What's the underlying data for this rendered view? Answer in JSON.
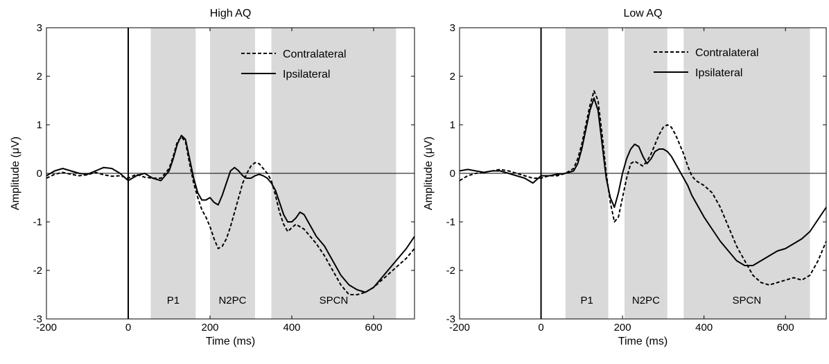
{
  "chart_data": [
    {
      "type": "line",
      "title": "High AQ",
      "xlabel": "Time (ms)",
      "ylabel": "Amplitude (μV)",
      "xlim": [
        -200,
        700
      ],
      "ylim": [
        -3,
        3
      ],
      "xticks": [
        -200,
        0,
        200,
        400,
        600
      ],
      "yticks": [
        -3,
        -2,
        -1,
        0,
        1,
        2,
        3
      ],
      "legend_position": "top-right",
      "shaded_windows": [
        {
          "label": "P1",
          "start": 55,
          "end": 165
        },
        {
          "label": "N2PC",
          "start": 200,
          "end": 310
        },
        {
          "label": "SPCN",
          "start": 350,
          "end": 655
        }
      ],
      "series": [
        {
          "name": "Contralateral",
          "style": "dashed",
          "x": [
            -200,
            -180,
            -160,
            -140,
            -120,
            -100,
            -80,
            -60,
            -40,
            -20,
            0,
            20,
            40,
            60,
            80,
            100,
            110,
            120,
            130,
            140,
            150,
            160,
            170,
            180,
            190,
            200,
            210,
            220,
            230,
            240,
            250,
            260,
            270,
            280,
            290,
            300,
            310,
            320,
            330,
            340,
            350,
            360,
            370,
            380,
            390,
            400,
            410,
            420,
            430,
            440,
            460,
            480,
            500,
            520,
            540,
            560,
            580,
            600,
            620,
            640,
            660,
            680,
            700
          ],
          "values": [
            -0.1,
            -0.02,
            0.02,
            -0.02,
            -0.05,
            -0.03,
            0.02,
            -0.03,
            -0.06,
            -0.05,
            -0.1,
            -0.02,
            -0.08,
            -0.1,
            -0.1,
            0.1,
            0.35,
            0.65,
            0.75,
            0.65,
            0.2,
            -0.2,
            -0.5,
            -0.75,
            -0.9,
            -1.1,
            -1.35,
            -1.55,
            -1.5,
            -1.35,
            -1.1,
            -0.8,
            -0.5,
            -0.2,
            0.0,
            0.15,
            0.22,
            0.2,
            0.1,
            0.0,
            -0.15,
            -0.45,
            -0.8,
            -1.05,
            -1.2,
            -1.12,
            -1.05,
            -1.1,
            -1.15,
            -1.25,
            -1.45,
            -1.7,
            -2.0,
            -2.3,
            -2.5,
            -2.5,
            -2.45,
            -2.35,
            -2.2,
            -2.05,
            -1.9,
            -1.75,
            -1.55
          ]
        },
        {
          "name": "Ipsilateral",
          "style": "solid",
          "x": [
            -200,
            -180,
            -160,
            -140,
            -120,
            -100,
            -80,
            -60,
            -40,
            -20,
            0,
            20,
            40,
            60,
            80,
            100,
            110,
            120,
            130,
            140,
            150,
            160,
            170,
            180,
            190,
            200,
            210,
            220,
            230,
            240,
            250,
            260,
            270,
            280,
            290,
            300,
            310,
            320,
            330,
            340,
            350,
            360,
            370,
            380,
            390,
            400,
            410,
            420,
            430,
            440,
            460,
            480,
            500,
            520,
            540,
            560,
            580,
            600,
            620,
            640,
            660,
            680,
            700
          ],
          "values": [
            -0.05,
            0.05,
            0.1,
            0.05,
            0.0,
            -0.02,
            0.05,
            0.12,
            0.1,
            0.0,
            -0.15,
            -0.05,
            0.0,
            -0.1,
            -0.15,
            0.05,
            0.3,
            0.6,
            0.78,
            0.7,
            0.3,
            -0.1,
            -0.4,
            -0.55,
            -0.55,
            -0.5,
            -0.6,
            -0.65,
            -0.45,
            -0.2,
            0.05,
            0.12,
            0.05,
            -0.05,
            -0.1,
            -0.1,
            -0.05,
            -0.02,
            -0.05,
            -0.1,
            -0.2,
            -0.35,
            -0.6,
            -0.85,
            -1.0,
            -1.0,
            -0.92,
            -0.8,
            -0.85,
            -1.0,
            -1.3,
            -1.5,
            -1.8,
            -2.1,
            -2.3,
            -2.4,
            -2.45,
            -2.35,
            -2.15,
            -1.95,
            -1.75,
            -1.55,
            -1.3
          ]
        }
      ]
    },
    {
      "type": "line",
      "title": "Low AQ",
      "xlabel": "Time (ms)",
      "ylabel": "Amplitude (μV)",
      "xlim": [
        -200,
        700
      ],
      "ylim": [
        -3,
        3
      ],
      "xticks": [
        -200,
        0,
        200,
        400,
        600
      ],
      "yticks": [
        -3,
        -2,
        -1,
        0,
        1,
        2,
        3
      ],
      "legend_position": "top-right",
      "shaded_windows": [
        {
          "label": "P1",
          "start": 60,
          "end": 165
        },
        {
          "label": "N2PC",
          "start": 205,
          "end": 310
        },
        {
          "label": "SPCN",
          "start": 350,
          "end": 660
        }
      ],
      "series": [
        {
          "name": "Contralateral",
          "style": "dashed",
          "x": [
            -200,
            -180,
            -160,
            -140,
            -120,
            -100,
            -80,
            -60,
            -40,
            -20,
            0,
            20,
            40,
            60,
            80,
            90,
            100,
            110,
            120,
            130,
            140,
            150,
            160,
            170,
            180,
            190,
            200,
            210,
            220,
            230,
            240,
            250,
            260,
            270,
            280,
            290,
            300,
            310,
            320,
            330,
            340,
            350,
            360,
            370,
            380,
            390,
            400,
            420,
            440,
            460,
            480,
            500,
            520,
            540,
            560,
            580,
            600,
            620,
            640,
            660,
            680,
            700
          ],
          "values": [
            -0.15,
            -0.05,
            0.0,
            0.02,
            0.05,
            0.08,
            0.05,
            0.0,
            -0.05,
            -0.1,
            -0.1,
            -0.05,
            -0.05,
            0.0,
            0.1,
            0.3,
            0.6,
            1.0,
            1.4,
            1.7,
            1.5,
            0.8,
            0.0,
            -0.6,
            -1.0,
            -0.9,
            -0.5,
            -0.1,
            0.2,
            0.25,
            0.2,
            0.15,
            0.25,
            0.4,
            0.6,
            0.8,
            0.95,
            1.0,
            0.95,
            0.8,
            0.6,
            0.4,
            0.15,
            -0.05,
            -0.15,
            -0.2,
            -0.25,
            -0.4,
            -0.7,
            -1.1,
            -1.5,
            -1.8,
            -2.1,
            -2.25,
            -2.3,
            -2.25,
            -2.2,
            -2.15,
            -2.2,
            -2.1,
            -1.8,
            -1.4
          ]
        },
        {
          "name": "Ipsilateral",
          "style": "solid",
          "x": [
            -200,
            -180,
            -160,
            -140,
            -120,
            -100,
            -80,
            -60,
            -40,
            -20,
            0,
            20,
            40,
            60,
            80,
            90,
            100,
            110,
            120,
            130,
            140,
            150,
            160,
            170,
            180,
            190,
            200,
            210,
            220,
            230,
            240,
            250,
            260,
            270,
            280,
            290,
            300,
            310,
            320,
            330,
            340,
            350,
            360,
            370,
            380,
            390,
            400,
            420,
            440,
            460,
            480,
            500,
            520,
            540,
            560,
            580,
            600,
            620,
            640,
            660,
            680,
            700
          ],
          "values": [
            0.05,
            0.08,
            0.05,
            0.02,
            0.05,
            0.05,
            0.0,
            -0.05,
            -0.1,
            -0.2,
            -0.05,
            -0.05,
            -0.02,
            0.0,
            0.05,
            0.2,
            0.5,
            0.9,
            1.3,
            1.55,
            1.3,
            0.6,
            -0.1,
            -0.5,
            -0.7,
            -0.4,
            0.0,
            0.3,
            0.5,
            0.6,
            0.55,
            0.35,
            0.2,
            0.3,
            0.45,
            0.5,
            0.5,
            0.45,
            0.35,
            0.2,
            0.05,
            -0.1,
            -0.25,
            -0.45,
            -0.6,
            -0.75,
            -0.9,
            -1.15,
            -1.4,
            -1.6,
            -1.8,
            -1.9,
            -1.9,
            -1.8,
            -1.7,
            -1.6,
            -1.55,
            -1.45,
            -1.35,
            -1.2,
            -0.95,
            -0.7
          ]
        }
      ]
    }
  ]
}
